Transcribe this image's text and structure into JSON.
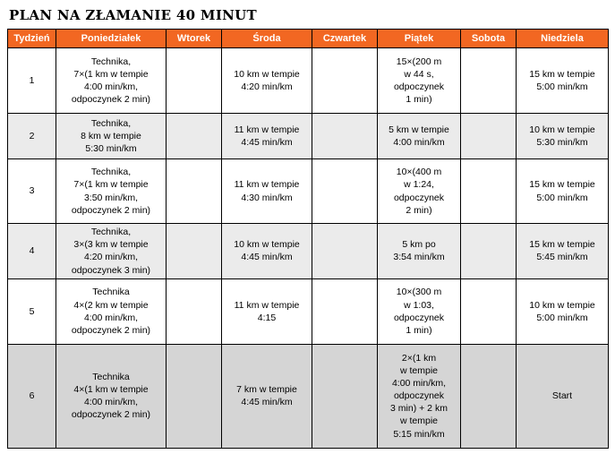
{
  "title": "PLAN NA ZŁAMANIE 40 MINUT",
  "colors": {
    "header-bg": "#F26722",
    "header-text": "#FFFFFF",
    "row-white": "#FFFFFF",
    "row-light": "#EBEBEB",
    "row-dark": "#D5D5D5",
    "border-color": "#000000"
  },
  "table": {
    "columns": [
      "Tydzień",
      "Poniedziałek",
      "Wtorek",
      "Środa",
      "Czwartek",
      "Piątek",
      "Sobota",
      "Niedziela"
    ],
    "rows": [
      {
        "week": "1",
        "cells": [
          "Technika,\n7×(1 km w tempie\n4:00 min/km,\nodpoczynek 2 min)",
          "",
          "10 km w tempie\n4:20 min/km",
          "",
          "15×(200 m\nw 44 s,\nodpoczynek\n1 min)",
          "",
          "15 km w tempie\n5:00 min/km"
        ]
      },
      {
        "week": "2",
        "cells": [
          "Technika,\n8 km w tempie\n5:30 min/km",
          "",
          "11 km w tempie\n4:45 min/km",
          "",
          "5 km w tempie\n4:00 min/km",
          "",
          "10 km w tempie\n5:30 min/km"
        ]
      },
      {
        "week": "3",
        "cells": [
          "Technika,\n7×(1 km w tempie\n3:50 min/km,\nodpoczynek 2 min)",
          "",
          "11 km w tempie\n4:30 min/km",
          "",
          "10×(400 m\nw 1:24,\nodpoczynek\n2 min)",
          "",
          "15 km w tempie\n5:00 min/km"
        ]
      },
      {
        "week": "4",
        "cells": [
          "Technika,\n3×(3 km w tempie\n4:20 min/km,\nodpoczynek 3 min)",
          "",
          "10 km w tempie\n4:45 min/km",
          "",
          "5 km po\n3:54 min/km",
          "",
          "15 km w tempie\n5:45 min/km"
        ]
      },
      {
        "week": "5",
        "cells": [
          "Technika\n4×(2 km w tempie\n4:00 min/km,\nodpoczynek 2 min)",
          "",
          "11 km w tempie\n4:15",
          "",
          "10×(300 m\nw 1:03,\nodpoczynek\n1 min)",
          "",
          "10 km w tempie\n5:00 min/km"
        ]
      },
      {
        "week": "6",
        "cells": [
          "Technika\n4×(1 km w tempie\n4:00 min/km,\nodpoczynek 2 min)",
          "",
          "7 km w tempie\n4:45 min/km",
          "",
          "2×(1 km\nw tempie\n4:00 min/km,\nodpoczynek\n3 min) + 2 km\nw tempie\n5:15 min/km",
          "",
          "Start"
        ]
      }
    ]
  }
}
